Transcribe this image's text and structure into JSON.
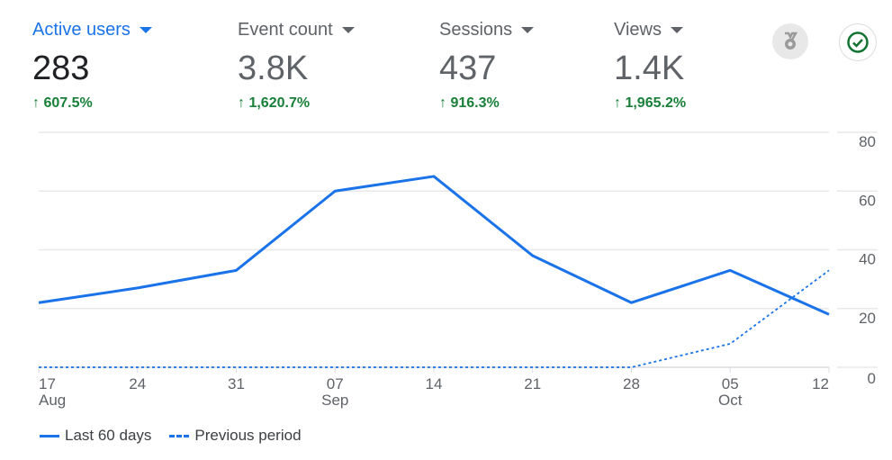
{
  "metrics": [
    {
      "label": "Active users",
      "value": "283",
      "change": "607.5%"
    },
    {
      "label": "Event count",
      "value": "3.8K",
      "change": "1,620.7%"
    },
    {
      "label": "Sessions",
      "value": "437",
      "change": "916.3%"
    },
    {
      "label": "Views",
      "value": "1.4K",
      "change": "1,965.2%"
    }
  ],
  "icons": {
    "insights": "medal-icon",
    "status": "check-circle-icon"
  },
  "colors": {
    "accent": "#1a73e8",
    "positive": "#188038"
  },
  "chart_data": {
    "type": "line",
    "categories": [
      "17",
      "24",
      "31",
      "07",
      "14",
      "21",
      "28",
      "05",
      "12"
    ],
    "category_sublabels": [
      "Aug",
      "",
      "",
      "Sep",
      "",
      "",
      "",
      "Oct",
      ""
    ],
    "series": [
      {
        "name": "Last 60 days",
        "style": "solid",
        "values": [
          22,
          27,
          33,
          60,
          65,
          38,
          22,
          33,
          18
        ]
      },
      {
        "name": "Previous period",
        "style": "dashed",
        "values": [
          0,
          0,
          0,
          0,
          0,
          0,
          0,
          8,
          33
        ]
      }
    ],
    "ylim": [
      0,
      80
    ],
    "yticks": [
      0,
      20,
      40,
      60,
      80
    ],
    "grid": true,
    "legend": "bottom-left"
  }
}
